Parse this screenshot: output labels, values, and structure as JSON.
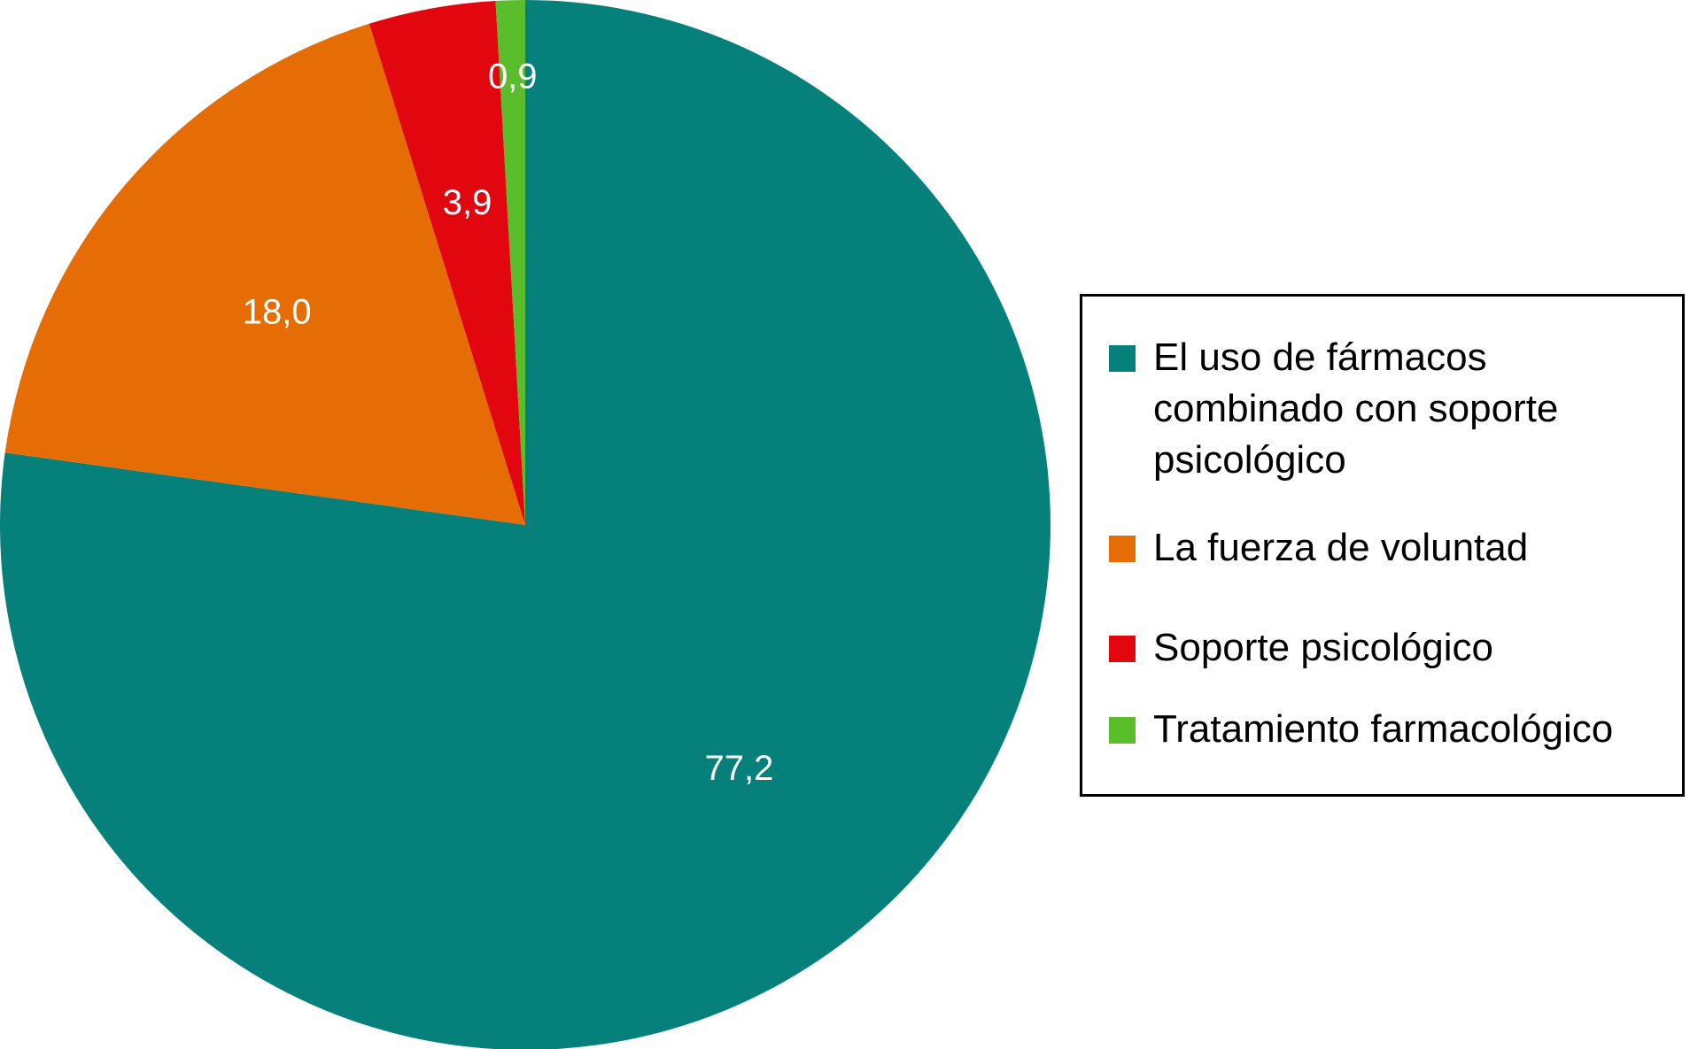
{
  "chart_data": {
    "type": "pie",
    "start_angle_deg": 0,
    "direction": "clockwise",
    "slices": [
      {
        "label": "El uso de fármacos combinado con soporte psicológico",
        "value": 77.2,
        "display": "77,2",
        "color": "#06807a"
      },
      {
        "label": "La fuerza de voluntad",
        "value": 18.0,
        "display": "18,0",
        "color": "#e66d05"
      },
      {
        "label": "Soporte psicológico",
        "value": 3.9,
        "display": "3,9",
        "color": "#e2060f"
      },
      {
        "label": "Tratamiento farmacológico",
        "value": 0.9,
        "display": "0,9",
        "color": "#5abd2b"
      }
    ],
    "legend": {
      "placement": "right",
      "entries": [
        "El uso de fármacos combinado con soporte psicológico",
        "La fuerza de voluntad",
        "Soporte psicológico",
        "Tratamiento farmacológico"
      ]
    }
  }
}
